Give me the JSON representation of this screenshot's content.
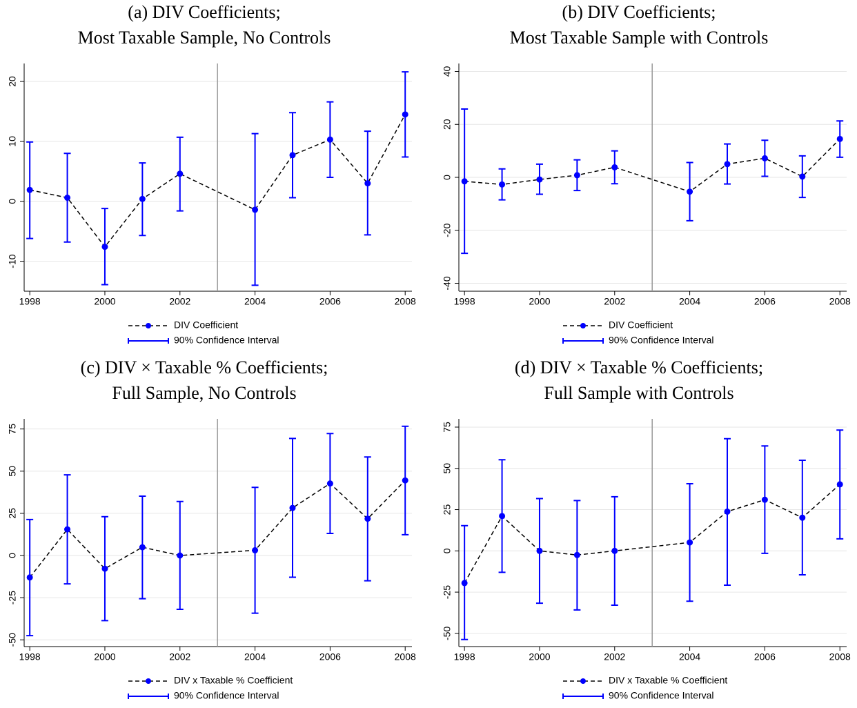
{
  "chart_data": [
    {
      "type": "errorbar_line",
      "title": [
        "(a) DIV Coefficients;",
        "Most Taxable Sample, No Controls"
      ],
      "x": [
        1998,
        1999,
        2000,
        2001,
        2002,
        2004,
        2005,
        2006,
        2007,
        2008
      ],
      "xlim": [
        1997.85,
        2008.18
      ],
      "xticks": [
        1998,
        2000,
        2002,
        2004,
        2006,
        2008
      ],
      "ylim": [
        -15,
        23
      ],
      "yticks": [
        -10,
        0,
        10,
        20
      ],
      "grid": true,
      "vline": 2003,
      "series": [
        {
          "name": "DIV Coefficient",
          "color": "#000000",
          "marker_color": "#0000ff",
          "values": [
            1.9,
            0.6,
            -7.6,
            0.4,
            4.6,
            -1.4,
            7.7,
            10.3,
            3.0,
            14.5
          ]
        },
        {
          "name": "90% Confidence Interval",
          "color": "#0000ff",
          "lower": [
            -6.2,
            -6.8,
            -13.9,
            -5.7,
            -1.6,
            -14.0,
            0.6,
            4.0,
            -5.6,
            7.4
          ],
          "upper": [
            9.9,
            8.0,
            -1.2,
            6.4,
            10.7,
            11.3,
            14.8,
            16.6,
            11.7,
            21.6
          ]
        }
      ]
    },
    {
      "type": "errorbar_line",
      "title": [
        "(b) DIV Coefficients;",
        "Most Taxable Sample with Controls"
      ],
      "x": [
        1998,
        1999,
        2000,
        2001,
        2002,
        2004,
        2005,
        2006,
        2007,
        2008
      ],
      "xlim": [
        1997.85,
        2008.18
      ],
      "xticks": [
        1998,
        2000,
        2002,
        2004,
        2006,
        2008
      ],
      "ylim": [
        -43,
        43
      ],
      "yticks": [
        -40,
        -20,
        0,
        20,
        40
      ],
      "grid": true,
      "vline": 2003,
      "series": [
        {
          "name": "DIV Coefficient",
          "color": "#000000",
          "marker_color": "#0000ff",
          "values": [
            -1.5,
            -2.7,
            -0.8,
            0.8,
            3.8,
            -5.4,
            5.0,
            7.2,
            0.3,
            14.5
          ]
        },
        {
          "name": "90% Confidence Interval",
          "color": "#0000ff",
          "lower": [
            -28.7,
            -8.5,
            -6.4,
            -5.0,
            -2.4,
            -16.4,
            -2.5,
            0.4,
            -7.6,
            7.6
          ],
          "upper": [
            25.8,
            3.2,
            5.0,
            6.6,
            10.0,
            5.6,
            12.6,
            14.0,
            8.1,
            21.3
          ]
        }
      ]
    },
    {
      "type": "errorbar_line",
      "title": [
        "(c) DIV × Taxable % Coefficients;",
        "Full Sample, No Controls"
      ],
      "x": [
        1998,
        1999,
        2000,
        2001,
        2002,
        2004,
        2005,
        2006,
        2007,
        2008
      ],
      "xlim": [
        1997.85,
        2008.18
      ],
      "xticks": [
        1998,
        2000,
        2002,
        2004,
        2006,
        2008
      ],
      "ylim": [
        -54,
        81
      ],
      "yticks": [
        -50,
        -25,
        0,
        25,
        50,
        75
      ],
      "grid": true,
      "vline": 2003,
      "series": [
        {
          "name": "DIV x Taxable % Coefficient",
          "color": "#000000",
          "marker_color": "#0000ff",
          "values": [
            -13.0,
            15.5,
            -7.8,
            4.9,
            0.0,
            3.1,
            28.2,
            42.7,
            21.8,
            44.5
          ]
        },
        {
          "name": "90% Confidence Interval",
          "color": "#0000ff",
          "lower": [
            -47.5,
            -16.8,
            -38.6,
            -25.6,
            -31.9,
            -34.2,
            -12.9,
            13.1,
            -15.0,
            12.3
          ],
          "upper": [
            21.3,
            47.8,
            23.0,
            35.2,
            32.0,
            40.4,
            69.4,
            72.3,
            58.4,
            76.6
          ]
        }
      ]
    },
    {
      "type": "errorbar_line",
      "title": [
        "(d) DIV × Taxable % Coefficients;",
        "Full Sample with Controls"
      ],
      "x": [
        1998,
        1999,
        2000,
        2001,
        2002,
        2004,
        2005,
        2006,
        2007,
        2008
      ],
      "xlim": [
        1997.85,
        2008.18
      ],
      "xticks": [
        1998,
        2000,
        2002,
        2004,
        2006,
        2008
      ],
      "ylim": [
        -58,
        80
      ],
      "yticks": [
        -50,
        -25,
        0,
        25,
        50,
        75
      ],
      "grid": true,
      "vline": 2003,
      "series": [
        {
          "name": "DIV x Taxable % Coefficient",
          "color": "#000000",
          "marker_color": "#0000ff",
          "values": [
            -19.5,
            21.1,
            0.0,
            -2.5,
            0.0,
            5.1,
            23.8,
            31.0,
            20.1,
            40.3
          ]
        },
        {
          "name": "90% Confidence Interval",
          "color": "#0000ff",
          "lower": [
            -53.7,
            -13.0,
            -31.7,
            -35.8,
            -32.9,
            -30.5,
            -20.8,
            -1.5,
            -14.5,
            7.3
          ],
          "upper": [
            15.3,
            55.2,
            31.7,
            30.5,
            32.8,
            40.7,
            68.0,
            63.6,
            54.9,
            73.2
          ]
        }
      ]
    }
  ]
}
